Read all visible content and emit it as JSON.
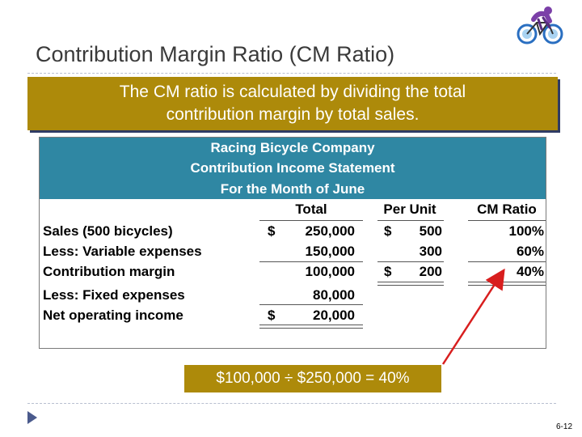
{
  "slide": {
    "title": "Contribution Margin Ratio (CM Ratio)",
    "callout_line1": "The CM ratio is calculated by dividing the total",
    "callout_line2": "contribution margin by total sales.",
    "calculation": "$100,000 ÷ $250,000 = 40%",
    "page_number": "6-12"
  },
  "statement": {
    "company": "Racing Bicycle Company",
    "name": "Contribution Income Statement",
    "period": "For the Month of June",
    "columns": {
      "total": "Total",
      "per_unit": "Per Unit",
      "cm_ratio": "CM Ratio"
    },
    "rows": {
      "sales": {
        "label": "Sales (500 bicycles)",
        "total_sign": "$",
        "total": "250,000",
        "unit_sign": "$",
        "unit": "500",
        "ratio": "100%"
      },
      "variable": {
        "label": "Less: Variable expenses",
        "total": "150,000",
        "unit": "300",
        "ratio": "60%"
      },
      "cm": {
        "label": "Contribution margin",
        "total": "100,000",
        "unit_sign": "$",
        "unit": "200",
        "ratio": "40%"
      },
      "fixed": {
        "label": "Less: Fixed expenses",
        "total": "80,000"
      },
      "noi": {
        "label": "Net operating income",
        "total_sign": "$",
        "total": "20,000"
      }
    }
  },
  "colors": {
    "gold": "#ad8a0a",
    "teal": "#2f87a3",
    "arrow": "#d81e1e"
  }
}
